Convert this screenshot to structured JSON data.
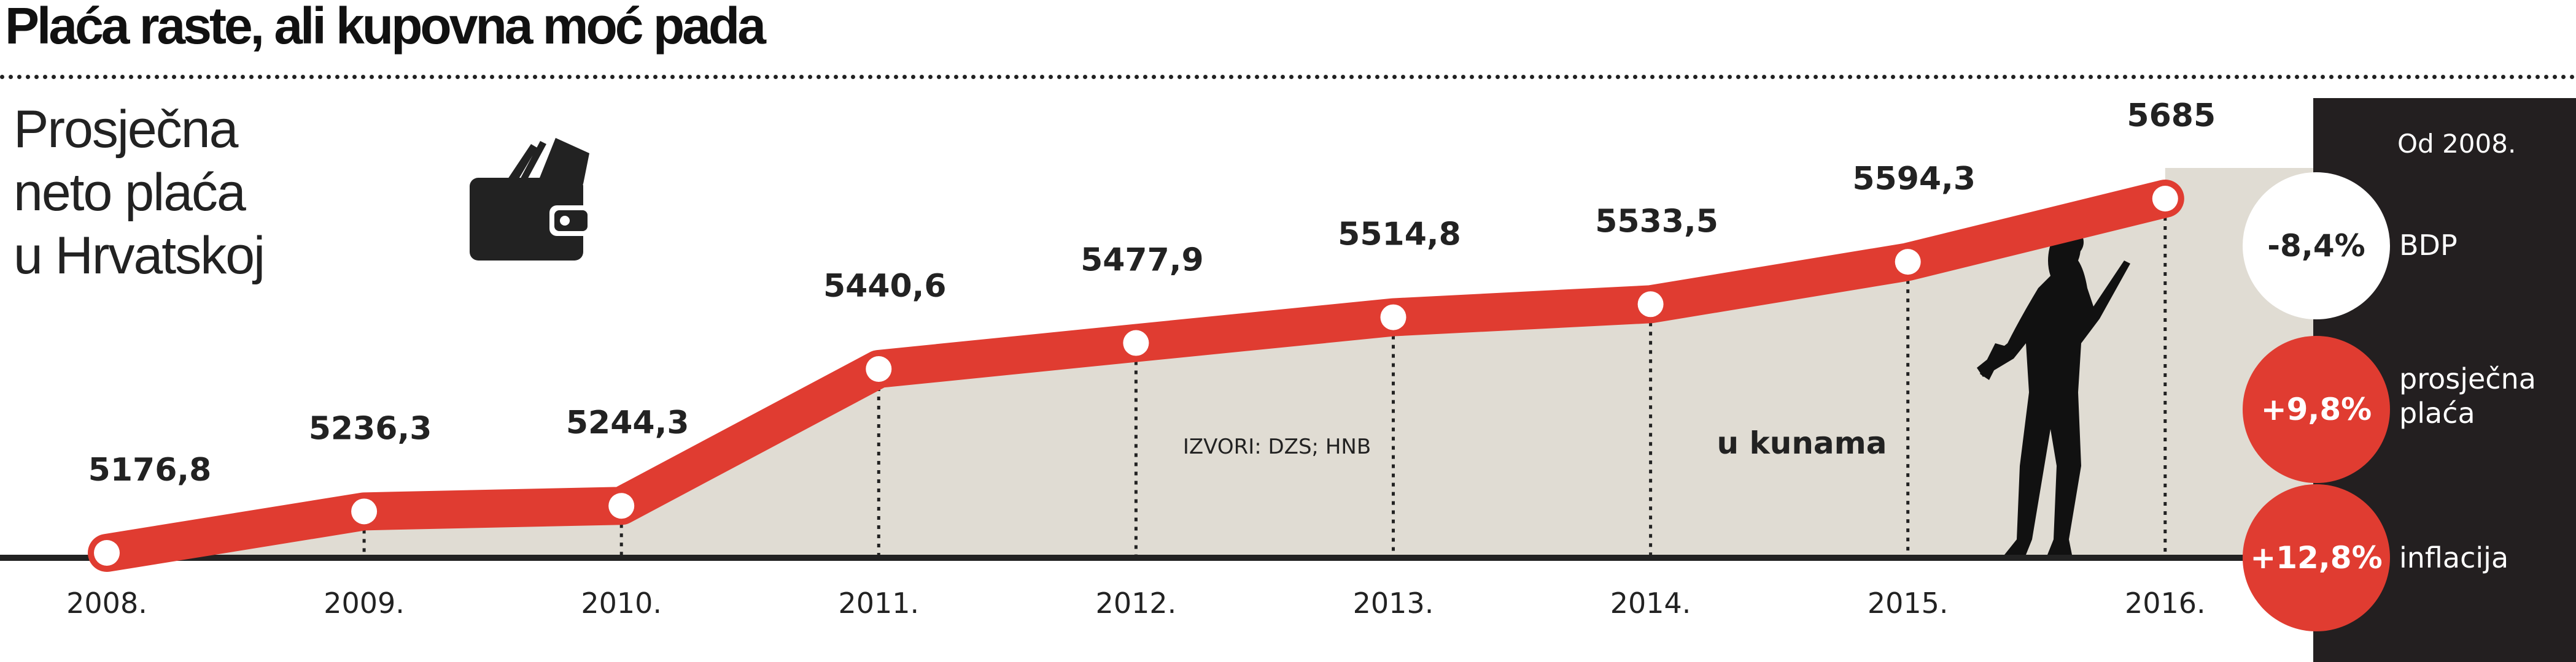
{
  "title": "Plaća raste, ali kupovna moć pada",
  "subtitle": [
    "Prosječna",
    "neto plaća",
    "u Hrvatskoj"
  ],
  "source": "IZVORI: DZS; HNB",
  "unit_note": "u kunama",
  "colors": {
    "line": "#e03c31",
    "fill": "#e0dcd3",
    "panel": "#231f20"
  },
  "chart_data": {
    "type": "line",
    "title": "Prosječna neto plaća u Hrvatskoj",
    "categories": [
      "2008.",
      "2009.",
      "2010.",
      "2011.",
      "2012.",
      "2013.",
      "2014.",
      "2015.",
      "2016."
    ],
    "values": [
      5176.8,
      5236.3,
      5244.3,
      5440.6,
      5477.9,
      5514.8,
      5533.5,
      5594.3,
      5685
    ],
    "labels": [
      "5176,8",
      "5236,3",
      "5244,3",
      "5440,6",
      "5477,9",
      "5514,8",
      "5533,5",
      "5594,3",
      "5685"
    ],
    "ylabel": "u kunama",
    "ylim": [
      5176.8,
      5685
    ]
  },
  "panel": {
    "heading": "Od 2008.",
    "items": [
      {
        "value": "-8,4%",
        "label": "BDP"
      },
      {
        "value": "+9,8%",
        "label": "prosječna plaća"
      },
      {
        "value": "+12,8%",
        "label": "inflacija"
      }
    ]
  }
}
